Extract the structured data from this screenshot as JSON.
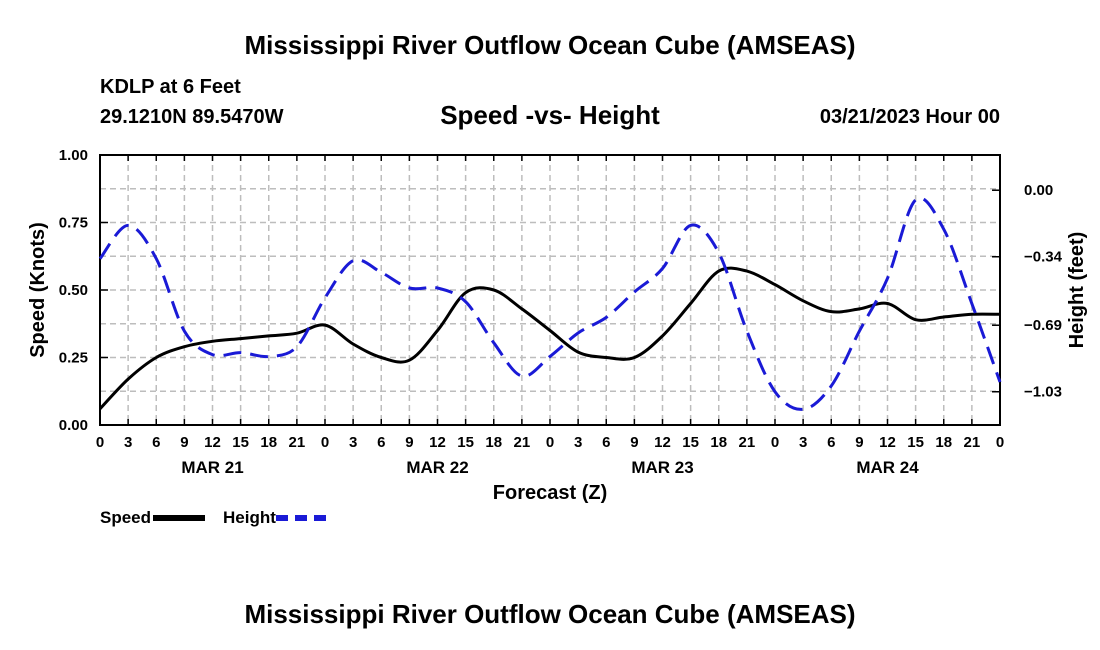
{
  "header": {
    "title": "Mississippi River Outflow Ocean Cube (AMSEAS)",
    "station": "KDLP at 6 Feet",
    "coords": "29.1210N  89.5470W",
    "subtitle": "Speed -vs- Height",
    "datetime": "03/21/2023 Hour 00"
  },
  "footer": {
    "title": "Mississippi River Outflow Ocean Cube (AMSEAS)"
  },
  "legend": {
    "speed": "Speed",
    "height": "Height"
  },
  "chart_data": {
    "type": "line",
    "xlabel": "Forecast (Z)",
    "ylabel_left": "Speed (Knots)",
    "ylabel_right": "Height (feet)",
    "x_range_hours": [
      0,
      96
    ],
    "ylim_left": [
      0,
      1
    ],
    "ylim_right": [
      -1.2,
      0.18
    ],
    "left_ticks": [
      {
        "v": 0,
        "label": "0.00"
      },
      {
        "v": 0.25,
        "label": "0.25"
      },
      {
        "v": 0.5,
        "label": "0.50"
      },
      {
        "v": 0.75,
        "label": "0.75"
      },
      {
        "v": 1,
        "label": "1.00"
      }
    ],
    "right_ticks": [
      {
        "v": 0,
        "label": "0.00"
      },
      {
        "v": -0.34,
        "label": "−0.34"
      },
      {
        "v": -0.69,
        "label": "−0.69"
      },
      {
        "v": -1.03,
        "label": "−1.03"
      }
    ],
    "x_tick_labels": [
      "0",
      "3",
      "6",
      "9",
      "12",
      "15",
      "18",
      "21",
      "0",
      "3",
      "6",
      "9",
      "12",
      "15",
      "18",
      "21",
      "0",
      "3",
      "6",
      "9",
      "12",
      "15",
      "18",
      "21",
      "0",
      "3",
      "6",
      "9",
      "12",
      "15",
      "18",
      "21",
      "0"
    ],
    "day_labels": [
      {
        "hour": 12,
        "label": "MAR 21"
      },
      {
        "hour": 36,
        "label": "MAR 22"
      },
      {
        "hour": 60,
        "label": "MAR 23"
      },
      {
        "hour": 84,
        "label": "MAR 24"
      }
    ],
    "grid": true,
    "series": [
      {
        "name": "Speed",
        "color": "#000000",
        "dash": "",
        "x": [
          0,
          3,
          6,
          9,
          12,
          15,
          18,
          21,
          24,
          27,
          30,
          33,
          36,
          39,
          42,
          45,
          48,
          51,
          54,
          57,
          60,
          63,
          66,
          69,
          72,
          75,
          78,
          81,
          84,
          87,
          90,
          93,
          96
        ],
        "values": [
          0.06,
          0.17,
          0.25,
          0.29,
          0.31,
          0.32,
          0.33,
          0.34,
          0.37,
          0.3,
          0.25,
          0.24,
          0.35,
          0.49,
          0.5,
          0.43,
          0.35,
          0.27,
          0.25,
          0.25,
          0.33,
          0.45,
          0.57,
          0.57,
          0.52,
          0.46,
          0.42,
          0.43,
          0.45,
          0.39,
          0.4,
          0.41,
          0.41
        ]
      },
      {
        "name": "Height",
        "color": "#1a1ad6",
        "dash": "18,9",
        "x": [
          0,
          3,
          6,
          9,
          12,
          15,
          18,
          21,
          24,
          27,
          30,
          33,
          36,
          39,
          42,
          45,
          48,
          51,
          54,
          57,
          60,
          63,
          66,
          69,
          72,
          75,
          78,
          81,
          84,
          87,
          90,
          93,
          96
        ],
        "values": [
          -0.35,
          -0.18,
          -0.35,
          -0.72,
          -0.84,
          -0.83,
          -0.85,
          -0.8,
          -0.55,
          -0.36,
          -0.42,
          -0.5,
          -0.5,
          -0.57,
          -0.78,
          -0.95,
          -0.85,
          -0.73,
          -0.65,
          -0.52,
          -0.4,
          -0.18,
          -0.32,
          -0.72,
          -1.03,
          -1.12,
          -1.0,
          -0.72,
          -0.45,
          -0.05,
          -0.2,
          -0.58,
          -0.98
        ]
      }
    ]
  }
}
